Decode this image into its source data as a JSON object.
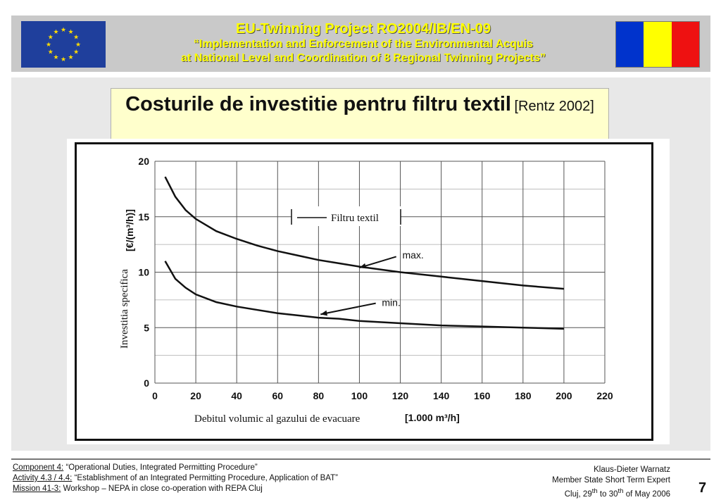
{
  "header": {
    "line1": "EU-Twinning  Project  RO2004/IB/EN-09",
    "line2": "“Implementation and Enforcement of the Environmental Acquis",
    "line3": "at National Level and Coordination of 8 Regional Twinning Projects”"
  },
  "slide": {
    "title": "Costurile de investitie pentru filtru textil",
    "title_ref": "[Rentz 2002]"
  },
  "chart_data": {
    "type": "line",
    "title": "",
    "xlabel": "Debitul volumic al gazului de evacuare",
    "xlabel_unit": "[1.000 m³/h]",
    "ylabel": "Investitia specifica",
    "ylabel_unit": "[€/(m³/h)]",
    "xlim": [
      0,
      220
    ],
    "ylim": [
      0,
      20
    ],
    "x_ticks": [
      0,
      20,
      40,
      60,
      80,
      100,
      120,
      140,
      160,
      180,
      200,
      220
    ],
    "y_ticks": [
      0,
      5,
      10,
      15,
      20
    ],
    "grid": true,
    "legend": {
      "placement": "top-center",
      "entries": [
        "Filtru textil"
      ]
    },
    "series": [
      {
        "name": "max.",
        "x": [
          5,
          10,
          15,
          20,
          30,
          40,
          50,
          60,
          70,
          80,
          90,
          100,
          120,
          140,
          160,
          180,
          200
        ],
        "y": [
          18.6,
          16.8,
          15.6,
          14.8,
          13.7,
          13.0,
          12.4,
          11.9,
          11.5,
          11.1,
          10.8,
          10.5,
          10.0,
          9.6,
          9.2,
          8.8,
          8.5
        ]
      },
      {
        "name": "min.",
        "x": [
          5,
          10,
          15,
          20,
          30,
          40,
          50,
          60,
          70,
          80,
          90,
          100,
          120,
          140,
          160,
          180,
          200
        ],
        "y": [
          11.0,
          9.4,
          8.6,
          8.0,
          7.3,
          6.9,
          6.6,
          6.3,
          6.1,
          5.9,
          5.8,
          5.6,
          5.4,
          5.2,
          5.1,
          5.0,
          4.9
        ]
      }
    ],
    "annotations": [
      "max.",
      "min."
    ]
  },
  "footer": {
    "left": [
      {
        "label": "Component 4:",
        "text": " “Operational Duties, Integrated Permitting Procedure”"
      },
      {
        "label": "Activity 4.3 / 4.4:",
        "text": " “Establishment of an Integrated Permitting Procedure, Application of BAT”"
      },
      {
        "label": "Mission 41-3:",
        "text": " Workshop – NEPA in close co-operation with REPA Cluj"
      }
    ],
    "right": {
      "name": "Klaus-Dieter Warnatz",
      "role": "Member State Short Term Expert",
      "place": "Cluj, 29",
      "date_sup1": "th",
      "date_mid": " to 30",
      "date_sup2": "th",
      "date_end": " of May 2006"
    },
    "page_number": "7"
  },
  "colors": {
    "eu_blue": "#1f3f9c",
    "eu_star": "#ffdd00",
    "ro_blue": "#0033cc",
    "ro_yellow": "#ffff00",
    "ro_red": "#ee1111",
    "title_bg": "#ffffcc",
    "header_text": "#ffff00"
  }
}
